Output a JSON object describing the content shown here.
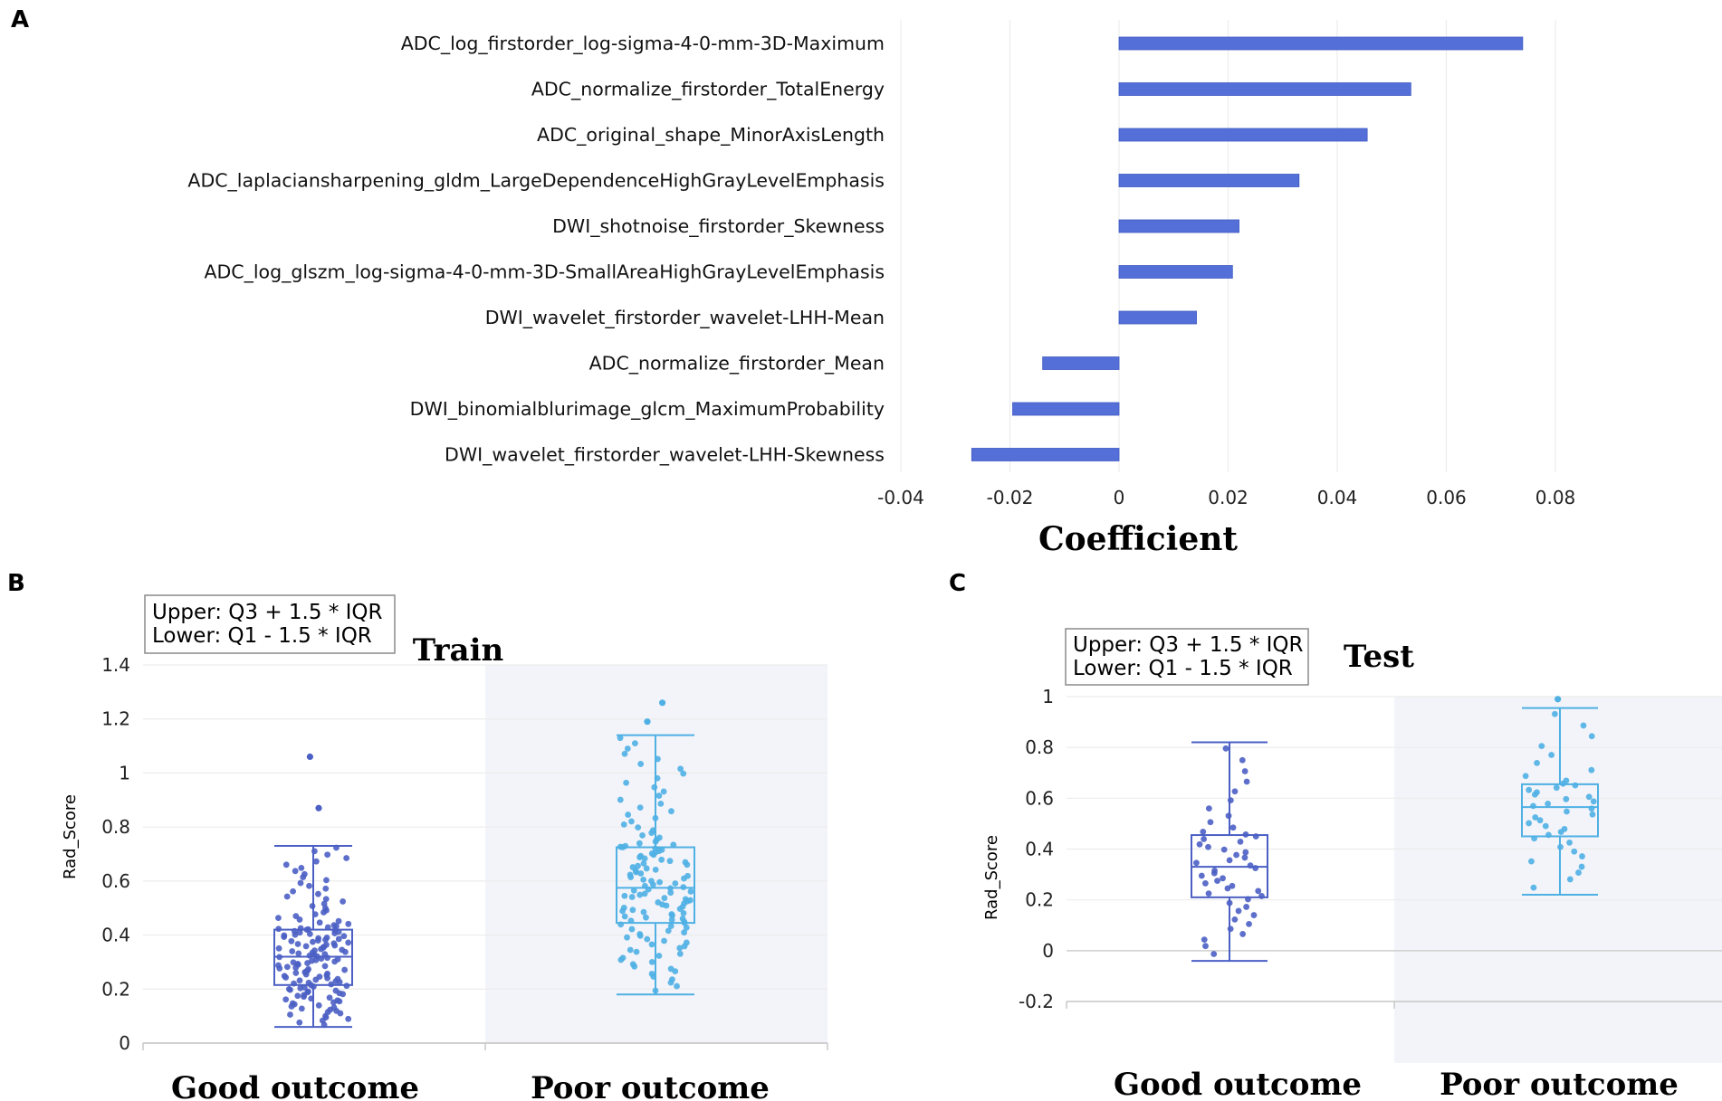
{
  "colors": {
    "bar": "#5470d8",
    "bar_edge": "#3f59c2",
    "good": "#4b5fc4",
    "poor": "#4fb0e4",
    "grid": "#ececec",
    "shade": "#f3f4f9"
  },
  "chart_data": [
    {
      "panel": "A",
      "type": "bar",
      "orientation": "horizontal",
      "xlabel": "Coefficient",
      "xlim": [
        -0.04,
        0.08
      ],
      "xticks": [
        "-0.04",
        "-0.02",
        "0",
        "0.02",
        "0.04",
        "0.06",
        "0.08"
      ],
      "xtick_values": [
        -0.04,
        -0.02,
        0,
        0.02,
        0.04,
        0.06,
        0.08
      ],
      "categories": [
        "ADC_log_firstorder_log-sigma-4-0-mm-3D-Maximum",
        "ADC_normalize_firstorder_TotalEnergy",
        "ADC_original_shape_MinorAxisLength",
        "ADC_laplaciansharpening_gldm_LargeDependenceHighGrayLevelEmphasis",
        "DWI_shotnoise_firstorder_Skewness",
        "ADC_log_glszm_log-sigma-4-0-mm-3D-SmallAreaHighGrayLevelEmphasis",
        "DWI_wavelet_firstorder_wavelet-LHH-Mean",
        "ADC_normalize_firstorder_Mean",
        "DWI_binomialblurimage_glcm_MaximumProbability",
        "DWI_wavelet_firstorder_wavelet-LHH-Skewness"
      ],
      "values": [
        0.074,
        0.0535,
        0.0455,
        0.033,
        0.022,
        0.0208,
        0.0142,
        -0.014,
        -0.0195,
        -0.027
      ]
    },
    {
      "panel": "B",
      "type": "box",
      "title": "Train",
      "ylabel": "Rad_Score",
      "ylim": [
        0,
        1.4
      ],
      "yticks": [
        "0",
        "0.2",
        "0.4",
        "0.6",
        "0.8",
        "1",
        "1.2",
        "1.4"
      ],
      "ytick_values": [
        0,
        0.2,
        0.4,
        0.6,
        0.8,
        1.0,
        1.2,
        1.4
      ],
      "legend": [
        "Upper: Q3 + 1.5 * IQR",
        "Lower: Q1 - 1.5 * IQR"
      ],
      "groups": [
        {
          "name": "Good outcome",
          "min": 0.06,
          "q1": 0.215,
          "median": 0.32,
          "q3": 0.42,
          "max": 0.73,
          "outliers": [
            0.87,
            1.06
          ],
          "n_points": 150
        },
        {
          "name": "Poor outcome",
          "min": 0.18,
          "q1": 0.445,
          "median": 0.575,
          "q3": 0.725,
          "max": 1.14,
          "outliers": [
            1.19,
            1.26
          ],
          "n_points": 130
        }
      ]
    },
    {
      "panel": "C",
      "type": "box",
      "title": "Test",
      "ylabel": "Rad_Score",
      "ylim": [
        -0.2,
        1
      ],
      "yticks": [
        "-0.2",
        "0",
        "0.2",
        "0.4",
        "0.6",
        "0.8",
        "1"
      ],
      "ytick_values": [
        -0.2,
        0,
        0.2,
        0.4,
        0.6,
        0.8,
        1.0
      ],
      "legend": [
        "Upper: Q3 + 1.5 * IQR",
        "Lower: Q1 - 1.5 * IQR"
      ],
      "groups": [
        {
          "name": "Good outcome",
          "min": -0.04,
          "q1": 0.21,
          "median": 0.33,
          "q3": 0.455,
          "max": 0.82,
          "outliers": [],
          "n_points": 48
        },
        {
          "name": "Poor outcome",
          "min": 0.22,
          "q1": 0.45,
          "median": 0.565,
          "q3": 0.655,
          "max": 0.955,
          "outliers": [
            0.99
          ],
          "n_points": 40
        }
      ]
    }
  ]
}
